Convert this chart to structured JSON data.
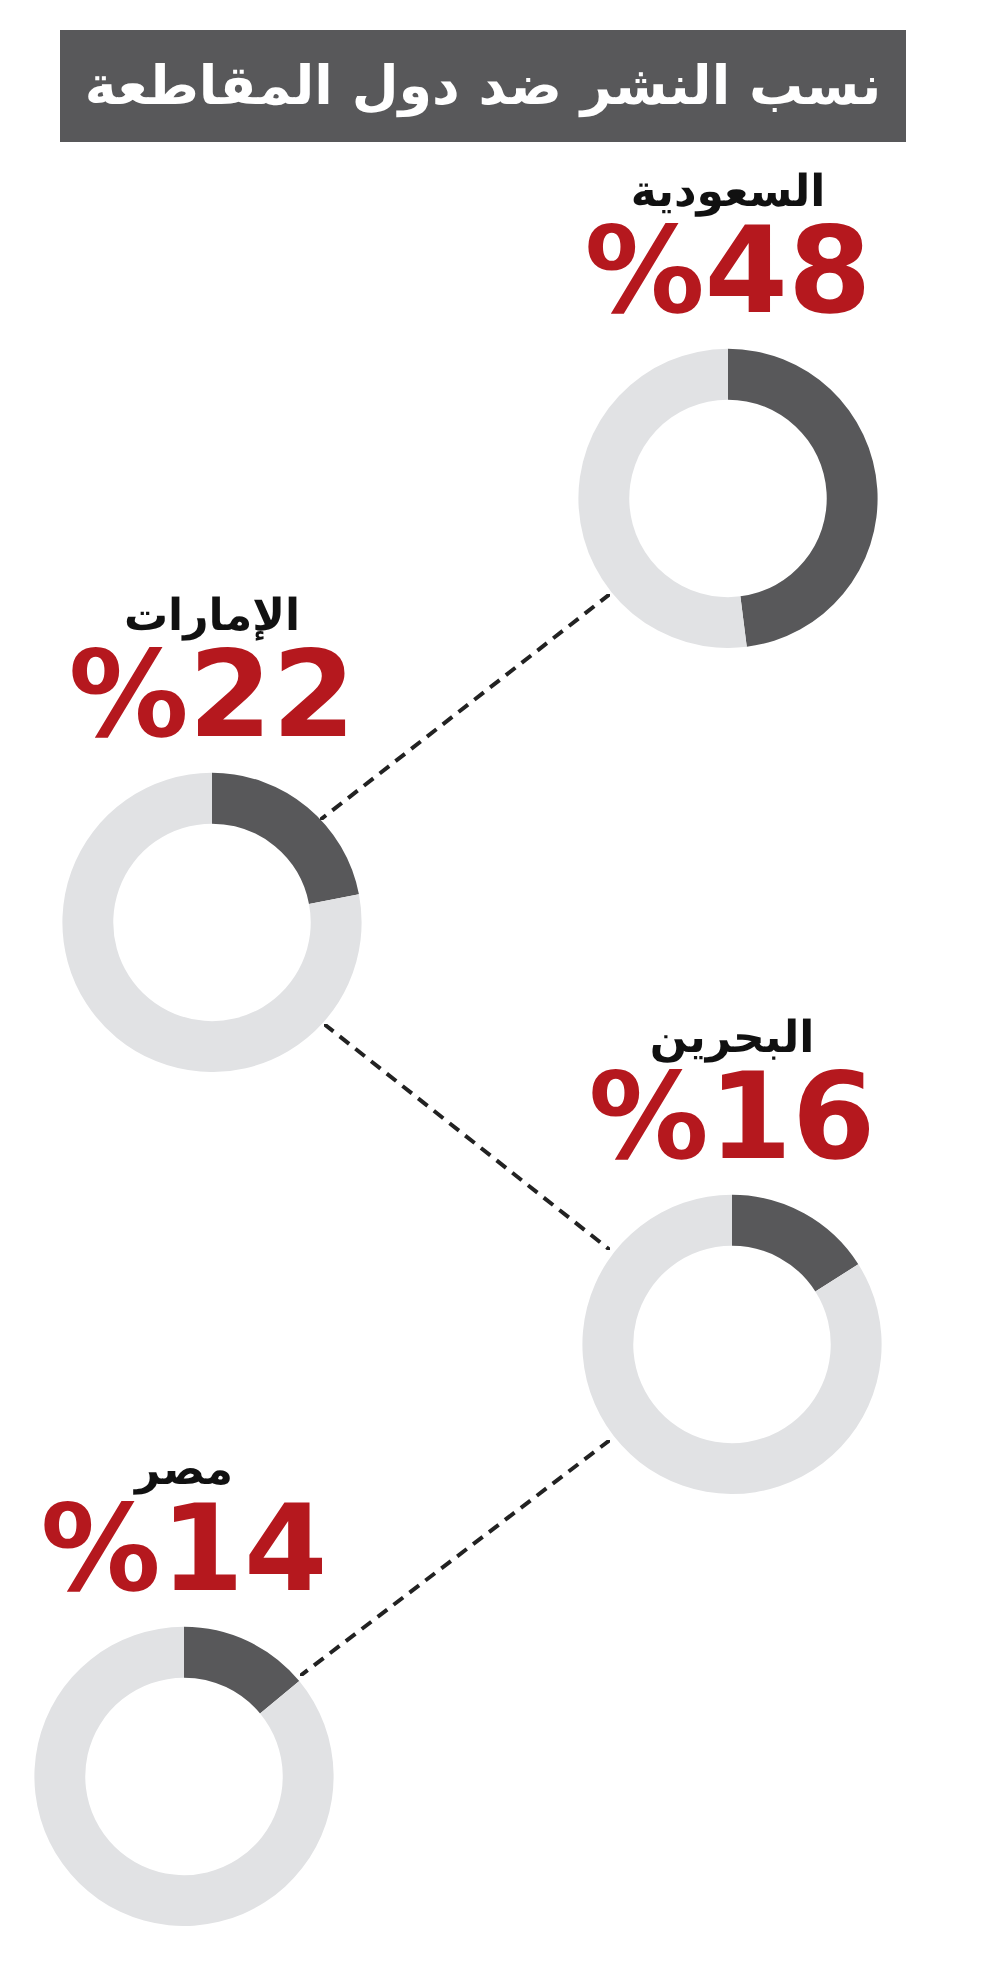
{
  "chart_data": [
    {
      "type": "other",
      "title": "نسب النشر ضد دول المقاطعة"
    },
    {
      "type": "donut",
      "title": "السعودية",
      "categories": [
        null,
        null
      ],
      "values": [
        48,
        52
      ],
      "colors": [
        "#58585a",
        "#e1e2e4"
      ],
      "value_labels": [
        "%48",
        null
      ]
    },
    {
      "type": "donut",
      "title": "الإمارات",
      "categories": [
        null,
        null
      ],
      "values": [
        22,
        78
      ],
      "colors": [
        "#58585a",
        "#e1e2e4"
      ],
      "value_labels": [
        "%22",
        null
      ]
    },
    {
      "type": "donut",
      "title": "البحرين",
      "categories": [
        null,
        null
      ],
      "values": [
        16,
        84
      ],
      "colors": [
        "#58585a",
        "#e1e2e4"
      ],
      "value_labels": [
        "%16",
        null
      ]
    },
    {
      "type": "donut",
      "title": "مصر",
      "categories": [
        null,
        null
      ],
      "values": [
        14,
        86
      ],
      "colors": [
        "#58585a",
        "#e1e2e4"
      ],
      "value_labels": [
        "%14",
        null
      ]
    }
  ]
}
